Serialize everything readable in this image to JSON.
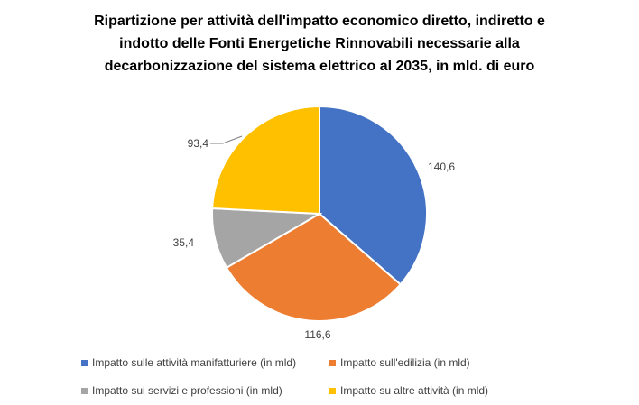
{
  "chart_data": {
    "type": "pie",
    "title_lines": [
      "Ripartizione per attività dell'impatto economico diretto, indiretto e",
      "indotto delle Fonti Energetiche Rinnovabili necessarie alla",
      "decarbonizzazione del sistema elettrico al 2035, in mld. di euro"
    ],
    "slices": [
      {
        "name": "Impatto sulle attività manifatturiere (in mld)",
        "value": 140.6,
        "label": "140,6",
        "color": "#4472C4"
      },
      {
        "name": "Impatto sull'edilizia (in mld)",
        "value": 116.6,
        "label": "116,6",
        "color": "#ED7D31"
      },
      {
        "name": "Impatto sui servizi e professioni (in mld)",
        "value": 35.4,
        "label": "35,4",
        "color": "#A5A5A5"
      },
      {
        "name": "Impatto su altre attività (in mld)",
        "value": 93.4,
        "label": "93,4",
        "color": "#FFC000"
      }
    ],
    "start_angle": "12 o'clock, clockwise",
    "legend_position": "bottom"
  }
}
